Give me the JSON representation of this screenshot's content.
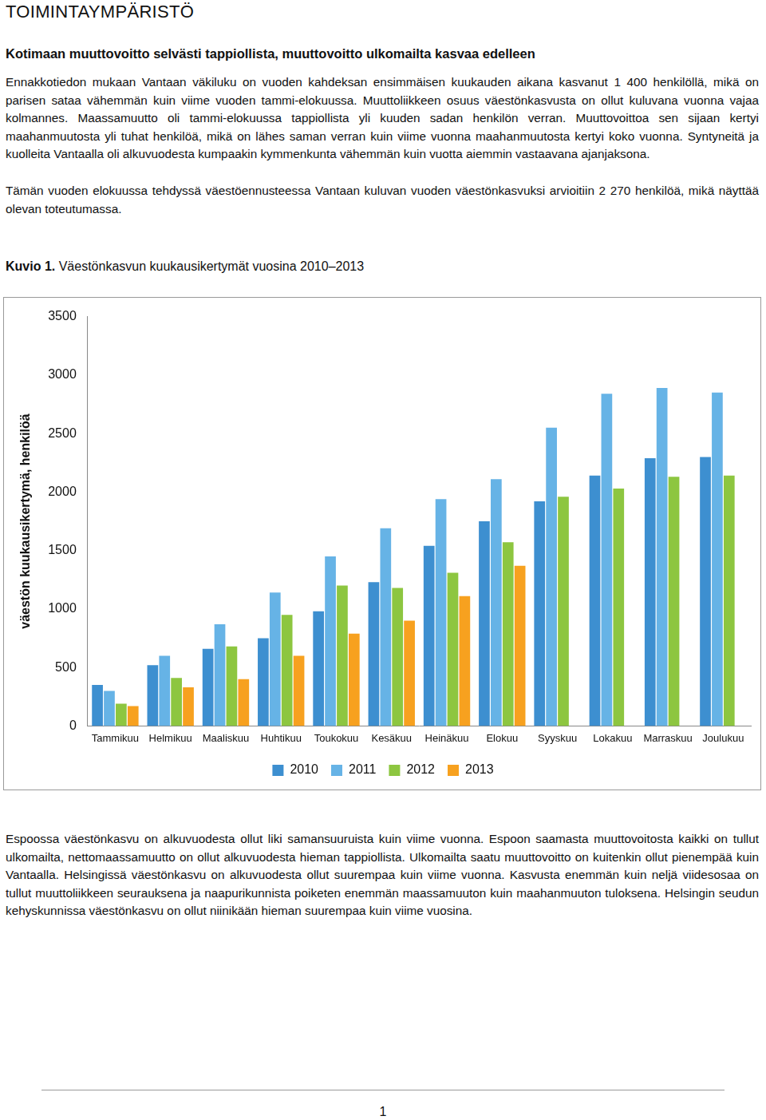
{
  "header": {
    "title": "TOIMINTAYMPÄRISTÖ",
    "subtitle": "Kotimaan muuttovoitto selvästi tappiollista, muuttovoitto ulkomailta kasvaa edelleen"
  },
  "paragraphs_before": [
    "Ennakkotiedon mukaan Vantaan väkiluku on vuoden kahdeksan ensimmäisen kuukauden aikana kasvanut 1 400 henkilöllä, mikä on parisen sataa vähemmän kuin viime vuoden tammi-elokuussa. Muuttoliikkeen osuus väestönkasvusta on ollut kuluvana vuonna vajaa kolmannes. Maassamuutto oli tammi-elokuussa tappiollista yli kuuden sadan henkilön verran. Muuttovoittoa sen sijaan kertyi maahanmuutosta yli tuhat henkilöä, mikä on lähes saman verran kuin viime vuonna maahanmuutosta kertyi koko vuonna. Syntyneitä ja kuolleita Vantaalla oli alkuvuodesta kumpaakin kymmenkunta vähemmän kuin vuotta aiemmin vastaavana ajanjaksona.",
    "Tämän vuoden elokuussa tehdyssä väestöennusteessa Vantaan kuluvan vuoden väestönkasvuksi arvioitiin 2 270 henkilöä, mikä näyttää olevan toteutumassa."
  ],
  "caption": {
    "label": "Kuvio 1.",
    "text": "Väestönkasvun kuukausikertymät vuosina 2010–2013"
  },
  "chart_data": {
    "type": "bar",
    "y_label": "väestön kuukausikertymä, henkilöä",
    "categories": [
      "Tammikuu",
      "Helmikuu",
      "Maaliskuu",
      "Huhtikuu",
      "Toukokuu",
      "Kesäkuu",
      "Heinäkuu",
      "Elokuu",
      "Syyskuu",
      "Lokakuu",
      "Marraskuu",
      "Joulukuu"
    ],
    "series": [
      {
        "name": "2010",
        "color": "#3d8fd0",
        "values": [
          350,
          520,
          660,
          750,
          980,
          1230,
          1540,
          1750,
          1920,
          2140,
          2290,
          2300
        ]
      },
      {
        "name": "2011",
        "color": "#66b3e6",
        "values": [
          300,
          600,
          870,
          1140,
          1450,
          1690,
          1940,
          2110,
          2550,
          2840,
          2890,
          2850
        ]
      },
      {
        "name": "2012",
        "color": "#8dc640",
        "values": [
          190,
          410,
          680,
          950,
          1200,
          1180,
          1310,
          1570,
          1960,
          2030,
          2130,
          2140
        ]
      },
      {
        "name": "2013",
        "color": "#f7a11f",
        "values": [
          170,
          330,
          400,
          600,
          790,
          900,
          1110,
          1370,
          null,
          null,
          null,
          null
        ]
      }
    ],
    "ylim": [
      0,
      3500
    ],
    "yticks": [
      0,
      500,
      1000,
      1500,
      2000,
      2500,
      3000,
      3500
    ],
    "grid": false,
    "legend": "bottom"
  },
  "paragraphs_after": [
    "Espoossa väestönkasvu on alkuvuodesta ollut liki samansuuruista kuin viime vuonna. Espoon saamasta muuttovoitosta kaikki on tullut ulkomailta, nettomaassamuutto on ollut alkuvuodesta hieman tappiollista. Ulkomailta saatu muuttovoitto on kuitenkin ollut pienempää kuin Vantaalla. Helsingissä väestönkasvu on alkuvuodesta ollut suurempaa kuin viime vuonna. Kasvusta enemmän kuin neljä viidesosaa on tullut muuttoliikkeen seurauksena ja naapurikunnista poiketen enemmän maassamuuton kuin maahanmuuton tuloksena. Helsingin seudun kehyskunnissa väestönkasvu on ollut niinikään hieman suurempaa kuin viime vuosina."
  ],
  "footer": {
    "page": "1"
  }
}
